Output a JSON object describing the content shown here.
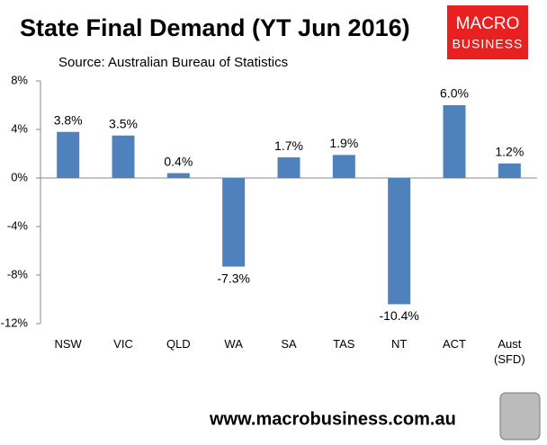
{
  "chart_data": {
    "type": "bar",
    "title": "State Final Demand (YT Jun 2016)",
    "subtitle": "Source: Australian Bureau of Statistics",
    "logo_text": [
      "MACRO",
      "BUSINESS"
    ],
    "footer": "www.macrobusiness.com.au",
    "categories": [
      "NSW",
      "VIC",
      "QLD",
      "WA",
      "SA",
      "TAS",
      "NT",
      "ACT",
      "Aust (SFD)"
    ],
    "values": [
      3.8,
      3.5,
      0.4,
      -7.3,
      1.7,
      1.9,
      -10.4,
      6.0,
      1.2
    ],
    "value_labels": [
      "3.8%",
      "3.5%",
      "0.4%",
      "-7.3%",
      "1.7%",
      "1.9%",
      "-10.4%",
      "6.0%",
      "1.2%"
    ],
    "color": "#4f81bd",
    "ylim": [
      -12,
      8
    ],
    "yticks": [
      {
        "value": -12,
        "label": "-12%"
      },
      {
        "value": -8,
        "label": "-8%"
      },
      {
        "value": -4,
        "label": "-4%"
      },
      {
        "value": 0,
        "label": "0%"
      },
      {
        "value": 4,
        "label": "4%"
      },
      {
        "value": 8,
        "label": "8%"
      }
    ],
    "grid": false
  }
}
